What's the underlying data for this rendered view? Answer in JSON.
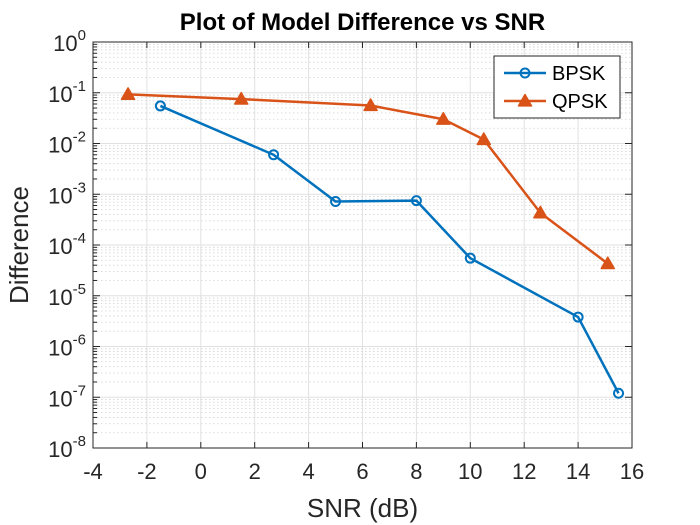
{
  "chart_data": {
    "type": "line",
    "title": "Plot of Model Difference vs SNR",
    "xlabel": "SNR (dB)",
    "ylabel": "Difference",
    "xlim": [
      -4,
      16
    ],
    "ylim": [
      1e-08,
      1
    ],
    "yscale": "log",
    "x_ticks": [
      "-4",
      "-2",
      "0",
      "2",
      "4",
      "6",
      "8",
      "10",
      "12",
      "14",
      "16"
    ],
    "y_ticks": [
      {
        "base": "10",
        "exp": "-8"
      },
      {
        "base": "10",
        "exp": "-7"
      },
      {
        "base": "10",
        "exp": "-6"
      },
      {
        "base": "10",
        "exp": "-5"
      },
      {
        "base": "10",
        "exp": "-4"
      },
      {
        "base": "10",
        "exp": "-3"
      },
      {
        "base": "10",
        "exp": "-2"
      },
      {
        "base": "10",
        "exp": "-1"
      },
      {
        "base": "10",
        "exp": "0"
      }
    ],
    "grid": true,
    "minor_grid": true,
    "legend_position": "top-right",
    "series": [
      {
        "name": "BPSK",
        "color": "#0072BD",
        "marker": "circle",
        "x": [
          -1.5,
          2.7,
          5.0,
          8.0,
          10.0,
          14.0,
          15.5
        ],
        "y": [
          0.055,
          0.006,
          0.00072,
          0.00075,
          5.5e-05,
          3.8e-06,
          1.2e-07
        ]
      },
      {
        "name": "QPSK",
        "color": "#D95319",
        "marker": "triangle",
        "x": [
          -2.7,
          1.5,
          6.3,
          9.0,
          10.5,
          12.6,
          15.1
        ],
        "y": [
          0.093,
          0.075,
          0.056,
          0.03,
          0.012,
          0.00043,
          4.3e-05
        ]
      }
    ]
  }
}
